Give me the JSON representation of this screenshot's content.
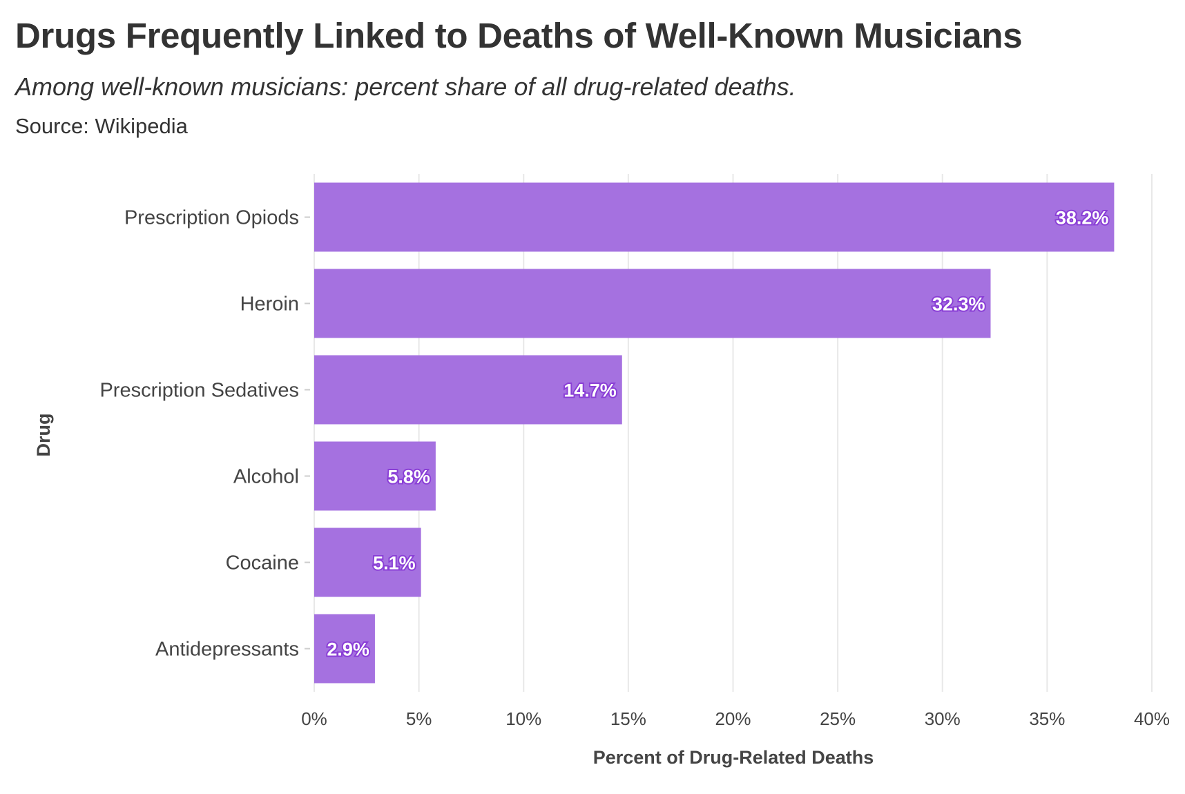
{
  "title": "Drugs Frequently Linked to Deaths of Well-Known Musicians",
  "subtitle": "Among well-known musicians: percent share of all drug-related deaths.",
  "source": "Source: Wikipedia",
  "colors": {
    "bar": "#a571e0",
    "label_outline": "#8a3fd6",
    "grid": "#e8e8e8"
  },
  "chart_data": {
    "type": "bar",
    "orientation": "horizontal",
    "categories": [
      "Prescription Opiods",
      "Heroin",
      "Prescription Sedatives",
      "Alcohol",
      "Cocaine",
      "Antidepressants"
    ],
    "values": [
      38.2,
      32.3,
      14.7,
      5.8,
      5.1,
      2.9
    ],
    "data_labels": [
      "38.2%",
      "32.3%",
      "14.7%",
      "5.8%",
      "5.1%",
      "2.9%"
    ],
    "xlabel": "Percent of Drug-Related Deaths",
    "ylabel": "Drug",
    "xlim": [
      0,
      40
    ],
    "x_ticks": [
      0,
      5,
      10,
      15,
      20,
      25,
      30,
      35,
      40
    ],
    "x_tick_labels": [
      "0%",
      "5%",
      "10%",
      "15%",
      "20%",
      "25%",
      "30%",
      "35%",
      "40%"
    ],
    "grid": true,
    "legend": "none"
  }
}
